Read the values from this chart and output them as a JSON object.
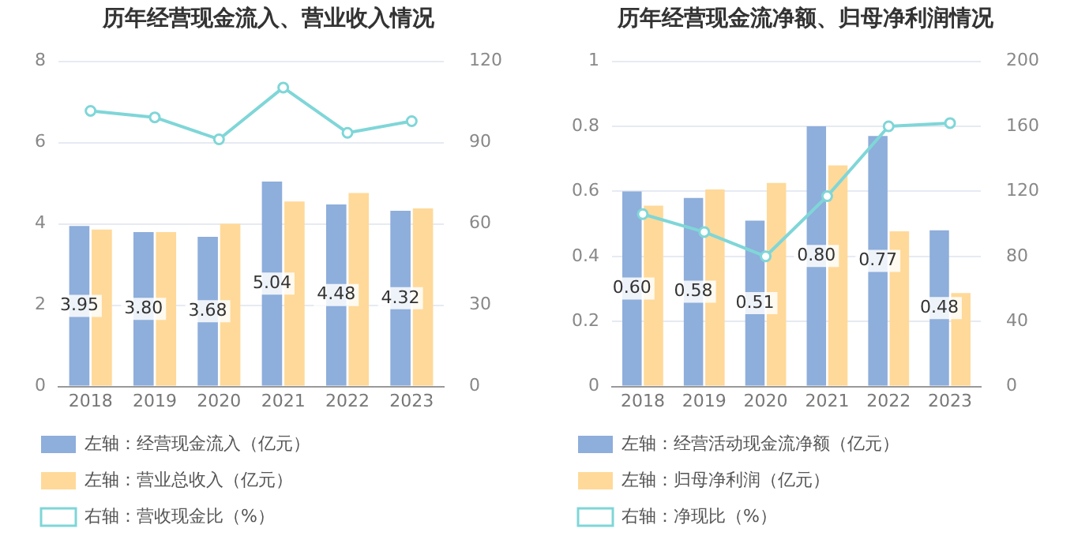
{
  "chart_data": [
    {
      "type": "bar",
      "title": "历年经营现金流入、营业收入情况",
      "categories": [
        "2018",
        "2019",
        "2020",
        "2021",
        "2022",
        "2023"
      ],
      "series": [
        {
          "name": "左轴：经营现金流入（亿元）",
          "color": "#8eaedb",
          "values": [
            3.95,
            3.8,
            3.68,
            5.04,
            4.48,
            4.32
          ],
          "value_labels": [
            "3.95",
            "3.80",
            "3.68",
            "5.04",
            "4.48",
            "4.32"
          ]
        },
        {
          "name": "左轴：营业总收入（亿元）",
          "color": "#ffd999",
          "values": [
            3.86,
            3.8,
            4.0,
            4.55,
            4.76,
            4.38
          ]
        },
        {
          "name": "右轴：营收现金比（%）",
          "type": "line",
          "axis": "y2",
          "color": "#7fd6d8",
          "values": [
            101.7,
            99.3,
            91.2,
            110.3,
            93.6,
            97.9
          ]
        }
      ],
      "ylim": [
        0,
        8
      ],
      "yticks": [
        0,
        2,
        4,
        6,
        8
      ],
      "y2lim": [
        0,
        120
      ],
      "y2ticks": [
        0,
        30,
        60,
        90,
        120
      ],
      "grid": "y",
      "legend": "bottom",
      "marker": "circle"
    },
    {
      "type": "bar",
      "title": "历年经营现金流净额、归母净利润情况",
      "categories": [
        "2018",
        "2019",
        "2020",
        "2021",
        "2022",
        "2023"
      ],
      "series": [
        {
          "name": "左轴：经营活动现金流净额（亿元）",
          "color": "#8eaedb",
          "values": [
            0.6,
            0.58,
            0.51,
            0.8,
            0.77,
            0.48
          ],
          "value_labels": [
            "0.60",
            "0.58",
            "0.51",
            "0.80",
            "0.77",
            "0.48"
          ]
        },
        {
          "name": "左轴：归母净利润（亿元）",
          "color": "#ffd999",
          "values": [
            0.556,
            0.606,
            0.626,
            0.68,
            0.477,
            0.287
          ]
        },
        {
          "name": "右轴：净现比（%）",
          "type": "line",
          "axis": "y2",
          "color": "#7fd6d8",
          "values": [
            106,
            95,
            80,
            117,
            160,
            162
          ]
        }
      ],
      "ylim": [
        0,
        1
      ],
      "yticks": [
        0,
        0.2,
        0.4,
        0.6,
        0.8,
        1
      ],
      "y2lim": [
        0,
        200
      ],
      "y2ticks": [
        0,
        40,
        80,
        120,
        160,
        200
      ],
      "grid": "y",
      "legend": "bottom",
      "marker": "circle"
    }
  ]
}
